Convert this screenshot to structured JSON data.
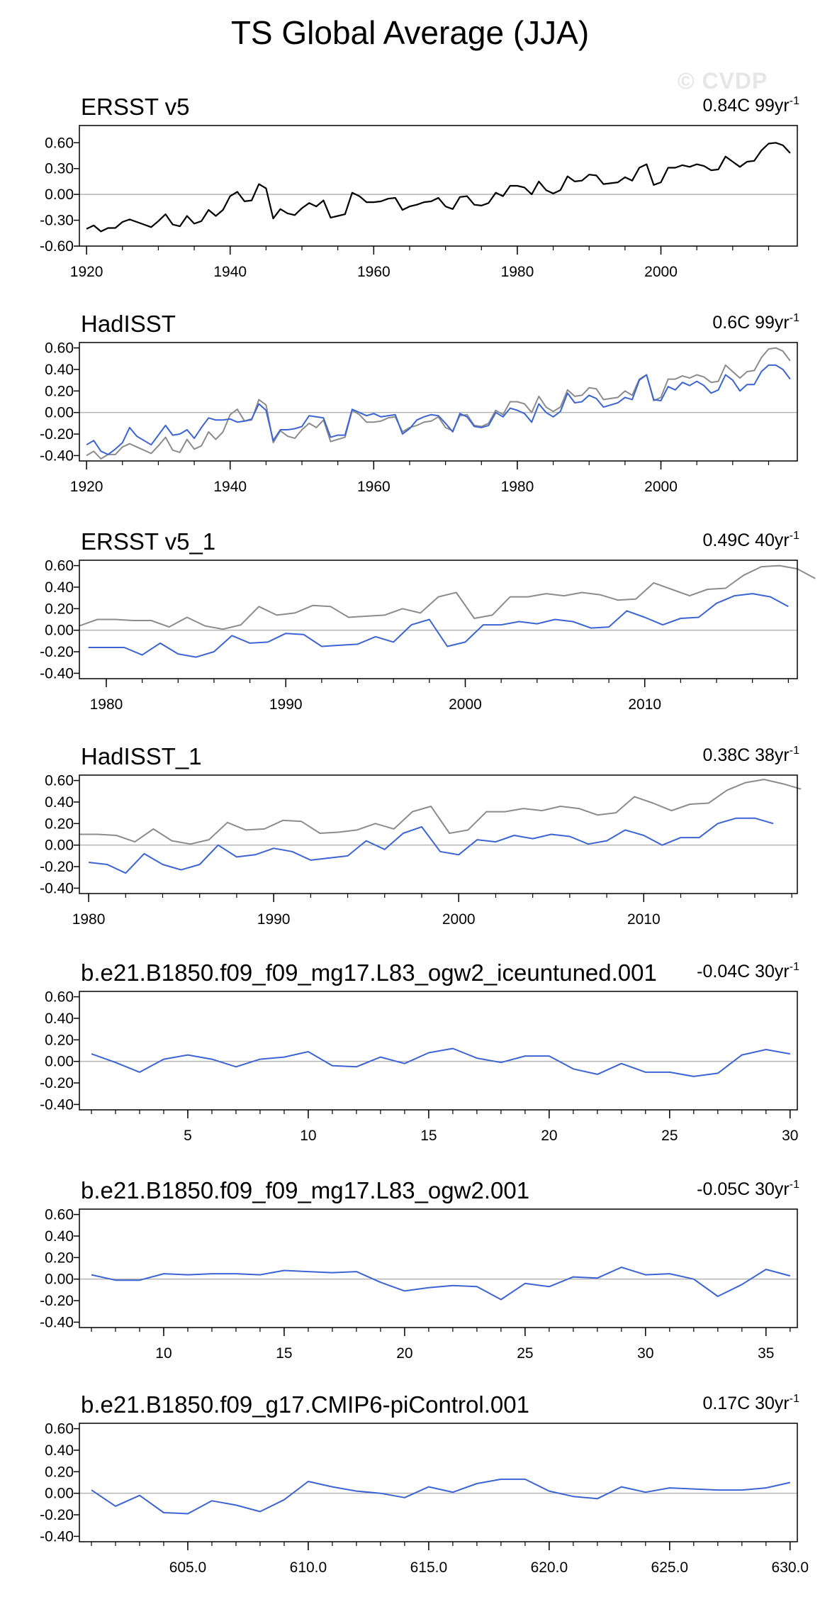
{
  "page": {
    "title": "TS Global Average (JJA)",
    "watermark": "© CVDP"
  },
  "colors": {
    "observed": "#000000",
    "reference": "#8c8c8c",
    "model": "#3c64d2",
    "zero_line": "#b4b4b4"
  },
  "chart_data": [
    {
      "type": "line",
      "title": "ERSST v5",
      "trend": {
        "value": "0.84C",
        "period": "99yr",
        "exp": "-1"
      },
      "xlim": [
        1919,
        2019
      ],
      "ylim": [
        -0.6,
        0.8
      ],
      "yticks": [
        -0.6,
        -0.3,
        0.0,
        0.3,
        0.6
      ],
      "ytick_labels": [
        "-0.60",
        "-0.30",
        "0.00",
        "0.30",
        "0.60"
      ],
      "xticks": [
        1920,
        1940,
        1960,
        1980,
        2000
      ],
      "xtick_labels": [
        "1920",
        "1940",
        "1960",
        "1980",
        "2000"
      ],
      "series": [
        {
          "name": "ERSST v5",
          "role": "observed",
          "x_start": 1920,
          "values": [
            -0.4,
            -0.36,
            -0.43,
            -0.39,
            -0.39,
            -0.32,
            -0.29,
            -0.32,
            -0.35,
            -0.38,
            -0.31,
            -0.23,
            -0.35,
            -0.37,
            -0.25,
            -0.34,
            -0.31,
            -0.18,
            -0.25,
            -0.18,
            -0.02,
            0.03,
            -0.08,
            -0.07,
            0.12,
            0.07,
            -0.28,
            -0.17,
            -0.22,
            -0.24,
            -0.16,
            -0.1,
            -0.14,
            -0.07,
            -0.27,
            -0.25,
            -0.23,
            0.02,
            -0.02,
            -0.09,
            -0.09,
            -0.08,
            -0.05,
            -0.04,
            -0.18,
            -0.14,
            -0.12,
            -0.09,
            -0.08,
            -0.04,
            -0.14,
            -0.17,
            -0.03,
            -0.02,
            -0.12,
            -0.13,
            -0.1,
            0.02,
            -0.02,
            0.1,
            0.1,
            0.08,
            0.0,
            0.15,
            0.05,
            0.01,
            0.05,
            0.21,
            0.15,
            0.16,
            0.23,
            0.22,
            0.12,
            0.13,
            0.14,
            0.2,
            0.16,
            0.31,
            0.35,
            0.11,
            0.14,
            0.31,
            0.31,
            0.34,
            0.32,
            0.35,
            0.33,
            0.28,
            0.29,
            0.44,
            0.38,
            0.32,
            0.38,
            0.39,
            0.51,
            0.59,
            0.6,
            0.57,
            0.48
          ]
        }
      ]
    },
    {
      "type": "line",
      "title": "HadISST",
      "trend": {
        "value": "0.6C",
        "period": "99yr",
        "exp": "-1"
      },
      "xlim": [
        1919,
        2019
      ],
      "ylim": [
        -0.45,
        0.65
      ],
      "yticks": [
        -0.4,
        -0.2,
        0.0,
        0.2,
        0.4,
        0.6
      ],
      "ytick_labels": [
        "-0.40",
        "-0.20",
        "0.00",
        "0.20",
        "0.40",
        "0.60"
      ],
      "xticks": [
        1920,
        1940,
        1960,
        1980,
        2000
      ],
      "xtick_labels": [
        "1920",
        "1940",
        "1960",
        "1980",
        "2000"
      ],
      "series": [
        {
          "name": "ERSST v5",
          "role": "reference",
          "x_start": 1920,
          "values": [
            -0.4,
            -0.36,
            -0.43,
            -0.39,
            -0.39,
            -0.32,
            -0.29,
            -0.32,
            -0.35,
            -0.38,
            -0.31,
            -0.23,
            -0.35,
            -0.37,
            -0.25,
            -0.34,
            -0.31,
            -0.18,
            -0.25,
            -0.18,
            -0.02,
            0.03,
            -0.08,
            -0.07,
            0.12,
            0.07,
            -0.28,
            -0.17,
            -0.22,
            -0.24,
            -0.16,
            -0.1,
            -0.14,
            -0.07,
            -0.27,
            -0.25,
            -0.23,
            0.02,
            -0.02,
            -0.09,
            -0.09,
            -0.08,
            -0.05,
            -0.04,
            -0.18,
            -0.14,
            -0.12,
            -0.09,
            -0.08,
            -0.04,
            -0.14,
            -0.17,
            -0.03,
            -0.02,
            -0.12,
            -0.13,
            -0.1,
            0.02,
            -0.02,
            0.1,
            0.1,
            0.08,
            0.0,
            0.15,
            0.05,
            0.01,
            0.05,
            0.21,
            0.15,
            0.16,
            0.23,
            0.22,
            0.12,
            0.13,
            0.14,
            0.2,
            0.16,
            0.31,
            0.35,
            0.11,
            0.14,
            0.31,
            0.31,
            0.34,
            0.32,
            0.35,
            0.33,
            0.28,
            0.29,
            0.44,
            0.38,
            0.32,
            0.38,
            0.39,
            0.51,
            0.59,
            0.6,
            0.57,
            0.48
          ]
        },
        {
          "name": "HadISST",
          "role": "model",
          "x_start": 1920,
          "values": [
            -0.3,
            -0.26,
            -0.36,
            -0.39,
            -0.34,
            -0.28,
            -0.14,
            -0.22,
            -0.26,
            -0.3,
            -0.21,
            -0.12,
            -0.21,
            -0.2,
            -0.16,
            -0.24,
            -0.14,
            -0.05,
            -0.07,
            -0.07,
            -0.06,
            -0.09,
            -0.08,
            -0.06,
            0.08,
            0.02,
            -0.26,
            -0.16,
            -0.16,
            -0.15,
            -0.13,
            -0.03,
            -0.04,
            -0.05,
            -0.23,
            -0.21,
            -0.21,
            0.03,
            0.0,
            -0.03,
            -0.01,
            -0.04,
            -0.03,
            -0.02,
            -0.2,
            -0.15,
            -0.07,
            -0.04,
            -0.02,
            -0.03,
            -0.1,
            -0.18,
            -0.01,
            -0.04,
            -0.13,
            -0.14,
            -0.12,
            0.0,
            -0.04,
            0.04,
            0.02,
            -0.01,
            -0.09,
            0.08,
            0.0,
            -0.04,
            0.01,
            0.18,
            0.09,
            0.1,
            0.16,
            0.13,
            0.05,
            0.07,
            0.09,
            0.14,
            0.12,
            0.3,
            0.35,
            0.12,
            0.11,
            0.24,
            0.21,
            0.28,
            0.25,
            0.29,
            0.25,
            0.18,
            0.21,
            0.35,
            0.3,
            0.2,
            0.26,
            0.26,
            0.38,
            0.44,
            0.44,
            0.4,
            0.31
          ]
        }
      ]
    },
    {
      "type": "line",
      "title": "ERSST v5_1",
      "trend": {
        "value": "0.49C",
        "period": "40yr",
        "exp": "-1"
      },
      "xlim": [
        1978.5,
        2018.5
      ],
      "ylim": [
        -0.45,
        0.65
      ],
      "yticks": [
        -0.4,
        -0.2,
        0.0,
        0.2,
        0.4,
        0.6
      ],
      "ytick_labels": [
        "-0.40",
        "-0.20",
        "0.00",
        "0.20",
        "0.40",
        "0.60"
      ],
      "xticks": [
        1980,
        1990,
        2000,
        2010
      ],
      "xtick_labels": [
        "1980",
        "1990",
        "2000",
        "2010"
      ],
      "series": [
        {
          "name": "ERSST v5",
          "role": "reference",
          "x_start": 1978.5,
          "values": [
            0.04,
            0.1,
            0.1,
            0.09,
            0.09,
            0.03,
            0.12,
            0.04,
            0.01,
            0.05,
            0.22,
            0.14,
            0.16,
            0.23,
            0.22,
            0.12,
            0.13,
            0.14,
            0.2,
            0.16,
            0.31,
            0.35,
            0.11,
            0.14,
            0.31,
            0.31,
            0.34,
            0.32,
            0.35,
            0.33,
            0.28,
            0.29,
            0.44,
            0.38,
            0.32,
            0.38,
            0.39,
            0.51,
            0.59,
            0.6,
            0.57,
            0.48
          ]
        },
        {
          "name": "ERSST v5_1",
          "role": "model",
          "x_start": 1979,
          "values": [
            -0.16,
            -0.16,
            -0.16,
            -0.23,
            -0.12,
            -0.22,
            -0.25,
            -0.2,
            -0.05,
            -0.12,
            -0.11,
            -0.03,
            -0.04,
            -0.15,
            -0.14,
            -0.13,
            -0.06,
            -0.11,
            0.05,
            0.1,
            -0.15,
            -0.11,
            0.05,
            0.05,
            0.08,
            0.06,
            0.1,
            0.08,
            0.02,
            0.03,
            0.18,
            0.12,
            0.05,
            0.11,
            0.12,
            0.25,
            0.32,
            0.34,
            0.31,
            0.22
          ]
        }
      ]
    },
    {
      "type": "line",
      "title": "HadISST_1",
      "trend": {
        "value": "0.38C",
        "period": "38yr",
        "exp": "-1"
      },
      "xlim": [
        1979.5,
        2018.3
      ],
      "ylim": [
        -0.45,
        0.65
      ],
      "yticks": [
        -0.4,
        -0.2,
        0.0,
        0.2,
        0.4,
        0.6
      ],
      "ytick_labels": [
        "-0.40",
        "-0.20",
        "0.00",
        "0.20",
        "0.40",
        "0.60"
      ],
      "xticks": [
        1980,
        1990,
        2000,
        2010
      ],
      "xtick_labels": [
        "1980",
        "1990",
        "2000",
        "2010"
      ],
      "series": [
        {
          "name": "ERSST v5",
          "role": "reference",
          "x_start": 1979.5,
          "values": [
            0.1,
            0.1,
            0.09,
            0.03,
            0.15,
            0.04,
            0.01,
            0.05,
            0.21,
            0.14,
            0.15,
            0.23,
            0.22,
            0.11,
            0.12,
            0.14,
            0.2,
            0.15,
            0.31,
            0.36,
            0.11,
            0.14,
            0.31,
            0.31,
            0.34,
            0.32,
            0.36,
            0.34,
            0.28,
            0.3,
            0.45,
            0.39,
            0.32,
            0.38,
            0.39,
            0.51,
            0.58,
            0.61,
            0.57,
            0.52
          ]
        },
        {
          "name": "HadISST_1",
          "role": "model",
          "x_start": 1980,
          "values": [
            -0.16,
            -0.18,
            -0.26,
            -0.08,
            -0.18,
            -0.23,
            -0.18,
            0.0,
            -0.11,
            -0.09,
            -0.03,
            -0.06,
            -0.14,
            -0.12,
            -0.1,
            0.04,
            -0.04,
            0.11,
            0.17,
            -0.06,
            -0.09,
            0.05,
            0.03,
            0.09,
            0.06,
            0.1,
            0.08,
            0.01,
            0.04,
            0.14,
            0.09,
            0.0,
            0.07,
            0.07,
            0.2,
            0.25,
            0.25,
            0.2
          ]
        }
      ]
    },
    {
      "type": "line",
      "title": "b.e21.B1850.f09_f09_mg17.L83_ogw2_iceuntuned.001",
      "trend": {
        "value": "-0.04C",
        "period": "30yr",
        "exp": "-1"
      },
      "xlim": [
        0.5,
        30.3
      ],
      "ylim": [
        -0.45,
        0.65
      ],
      "yticks": [
        -0.4,
        -0.2,
        0.0,
        0.2,
        0.4,
        0.6
      ],
      "ytick_labels": [
        "-0.40",
        "-0.20",
        "0.00",
        "0.20",
        "0.40",
        "0.60"
      ],
      "xticks": [
        5,
        10,
        15,
        20,
        25,
        30
      ],
      "xtick_labels": [
        "5",
        "10",
        "15",
        "20",
        "25",
        "30"
      ],
      "series": [
        {
          "name": "b.e21.B1850.f09_f09_mg17.L83_ogw2_iceuntuned.001",
          "role": "model",
          "x_start": 1,
          "values": [
            0.07,
            -0.01,
            -0.1,
            0.02,
            0.06,
            0.02,
            -0.05,
            0.02,
            0.04,
            0.09,
            -0.04,
            -0.05,
            0.04,
            -0.02,
            0.08,
            0.12,
            0.03,
            -0.01,
            0.05,
            0.05,
            -0.07,
            -0.12,
            -0.02,
            -0.1,
            -0.1,
            -0.14,
            -0.11,
            0.06,
            0.11,
            0.07
          ]
        }
      ]
    },
    {
      "type": "line",
      "title": "b.e21.B1850.f09_f09_mg17.L83_ogw2.001",
      "trend": {
        "value": "-0.05C",
        "period": "30yr",
        "exp": "-1"
      },
      "xlim": [
        6.5,
        36.3
      ],
      "ylim": [
        -0.45,
        0.65
      ],
      "yticks": [
        -0.4,
        -0.2,
        0.0,
        0.2,
        0.4,
        0.6
      ],
      "ytick_labels": [
        "-0.40",
        "-0.20",
        "0.00",
        "0.20",
        "0.40",
        "0.60"
      ],
      "xticks": [
        10,
        15,
        20,
        25,
        30,
        35
      ],
      "xtick_labels": [
        "10",
        "15",
        "20",
        "25",
        "30",
        "35"
      ],
      "series": [
        {
          "name": "b.e21.B1850.f09_f09_mg17.L83_ogw2.001",
          "role": "model",
          "x_start": 7,
          "values": [
            0.04,
            -0.01,
            -0.01,
            0.05,
            0.04,
            0.05,
            0.05,
            0.04,
            0.08,
            0.07,
            0.06,
            0.07,
            -0.03,
            -0.11,
            -0.08,
            -0.06,
            -0.07,
            -0.19,
            -0.04,
            -0.07,
            0.02,
            0.01,
            0.11,
            0.04,
            0.05,
            0.0,
            -0.16,
            -0.05,
            0.09,
            0.03
          ]
        }
      ]
    },
    {
      "type": "line",
      "title": "b.e21.B1850.f09_g17.CMIP6-piControl.001",
      "trend": {
        "value": "0.17C",
        "period": "30yr",
        "exp": "-1"
      },
      "xlim": [
        600.5,
        630.3
      ],
      "ylim": [
        -0.45,
        0.65
      ],
      "yticks": [
        -0.4,
        -0.2,
        0.0,
        0.2,
        0.4,
        0.6
      ],
      "ytick_labels": [
        "-0.40",
        "-0.20",
        "0.00",
        "0.20",
        "0.40",
        "0.60"
      ],
      "xticks": [
        605,
        610,
        615,
        620,
        625,
        630
      ],
      "xtick_labels": [
        "605.0",
        "610.0",
        "615.0",
        "620.0",
        "625.0",
        "630.0"
      ],
      "series": [
        {
          "name": "b.e21.B1850.f09_g17.CMIP6-piControl.001",
          "role": "model",
          "x_start": 601,
          "values": [
            0.03,
            -0.12,
            -0.02,
            -0.18,
            -0.19,
            -0.07,
            -0.11,
            -0.17,
            -0.06,
            0.11,
            0.06,
            0.02,
            0.0,
            -0.04,
            0.06,
            0.01,
            0.09,
            0.13,
            0.13,
            0.02,
            -0.03,
            -0.05,
            0.06,
            0.01,
            0.05,
            0.04,
            0.03,
            0.03,
            0.05,
            0.1
          ]
        }
      ]
    }
  ]
}
